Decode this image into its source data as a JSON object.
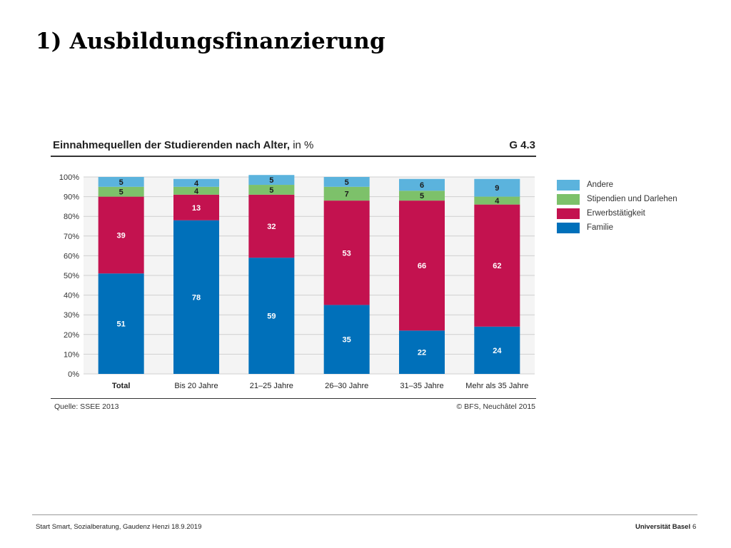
{
  "slide": {
    "title": "1) Ausbildungsfinanzierung"
  },
  "chart_data": {
    "type": "bar",
    "stacked": true,
    "title": "Einnahmequellen der Studierenden nach Alter,",
    "title_unit": "in %",
    "code": "G 4.3",
    "categories": [
      "Total",
      "Bis 20 Jahre",
      "21–25 Jahre",
      "26–30 Jahre",
      "31–35 Jahre",
      "Mehr als 35 Jahre"
    ],
    "series": [
      {
        "name": "Familie",
        "color": "#0070ba",
        "label_color": "#ffffff",
        "values": [
          51,
          78,
          59,
          35,
          22,
          24
        ]
      },
      {
        "name": "Erwerbstätigkeit",
        "color": "#c3124f",
        "label_color": "#ffffff",
        "values": [
          39,
          13,
          32,
          53,
          66,
          62
        ]
      },
      {
        "name": "Stipendien und Darlehen",
        "color": "#7dc16a",
        "label_color": "#1a1a1a",
        "values": [
          5,
          4,
          5,
          7,
          5,
          4
        ]
      },
      {
        "name": "Andere",
        "color": "#5bb3dd",
        "label_color": "#1a1a1a",
        "values": [
          5,
          4,
          5,
          5,
          6,
          9
        ]
      }
    ],
    "legend_order": [
      "Andere",
      "Stipendien und Darlehen",
      "Erwerbstätigkeit",
      "Familie"
    ],
    "legend_position": "right",
    "ylim": [
      0,
      100
    ],
    "yticks": [
      "0%",
      "10%",
      "20%",
      "30%",
      "40%",
      "50%",
      "60%",
      "70%",
      "80%",
      "90%",
      "100%"
    ],
    "grid": true,
    "source": "Quelle: SSEE 2013",
    "copyright": "© BFS, Neuchâtel 2015"
  },
  "footer": {
    "text": "Start Smart, Sozialberatung, Gaudenz Henzi 18.9.2019",
    "organization": "Universität Basel",
    "page_number": "6"
  }
}
